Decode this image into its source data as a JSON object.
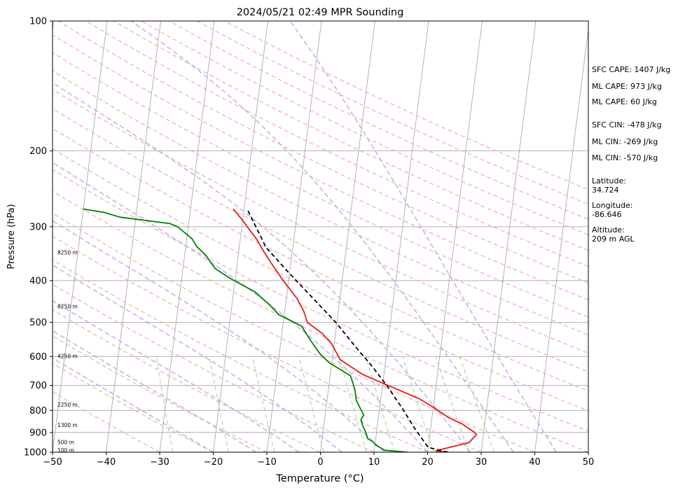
{
  "chart_data": {
    "type": "line",
    "title": "2024/05/21 02:49 MPR Sounding",
    "xlabel": "Temperature (°C)",
    "ylabel": "Pressure (hPa)",
    "xlim": [
      -50,
      50
    ],
    "ylim": [
      1000,
      100
    ],
    "y_scale": "log",
    "grid": true,
    "x_ticks": [
      "−50",
      "−40",
      "−30",
      "−20",
      "−10",
      "0",
      "10",
      "20",
      "30",
      "40",
      "50"
    ],
    "x_tick_values": [
      -50,
      -40,
      -30,
      -20,
      -10,
      0,
      10,
      20,
      30,
      40,
      50
    ],
    "y_ticks": [
      "100",
      "200",
      "300",
      "400",
      "500",
      "600",
      "700",
      "800",
      "900",
      "1000"
    ],
    "y_tick_values": [
      100,
      200,
      300,
      400,
      500,
      600,
      700,
      800,
      900,
      1000
    ],
    "height_labels": [
      {
        "text": "100 m",
        "p": 992
      },
      {
        "text": "500 m",
        "p": 950
      },
      {
        "text": "1300 m",
        "p": 868
      },
      {
        "text": "2250 m",
        "p": 778
      },
      {
        "text": "4250 m",
        "p": 600
      },
      {
        "text": "6250 m",
        "p": 460
      },
      {
        "text": "8250 m",
        "p": 345
      }
    ],
    "series": [
      {
        "color": "#e8191b",
        "points": [
          [
            23.8,
            1000
          ],
          [
            21.5,
            993
          ],
          [
            22.8,
            983
          ],
          [
            27.5,
            950
          ],
          [
            28.7,
            910
          ],
          [
            28.3,
            900
          ],
          [
            25.8,
            860
          ],
          [
            23,
            830
          ],
          [
            19.5,
            780
          ],
          [
            17,
            750
          ],
          [
            11,
            700
          ],
          [
            6,
            660
          ],
          [
            1.5,
            610
          ],
          [
            -0.5,
            560
          ],
          [
            -2.5,
            530
          ],
          [
            -5.5,
            500
          ],
          [
            -6.5,
            470
          ],
          [
            -8,
            440
          ],
          [
            -11,
            400
          ],
          [
            -14,
            360
          ],
          [
            -15.5,
            340
          ],
          [
            -17,
            320
          ],
          [
            -18.5,
            305
          ],
          [
            -20,
            290
          ],
          [
            -22,
            273
          ]
        ]
      },
      {
        "color": "#008000",
        "points": [
          [
            16.3,
            1000
          ],
          [
            12,
            990
          ],
          [
            10.3,
            965
          ],
          [
            9.5,
            945
          ],
          [
            8.5,
            930
          ],
          [
            8,
            900
          ],
          [
            7.3,
            870
          ],
          [
            6.8,
            840
          ],
          [
            7.2,
            820
          ],
          [
            5.5,
            760
          ],
          [
            5,
            720
          ],
          [
            4.5,
            695
          ],
          [
            3.8,
            665
          ],
          [
            -0.5,
            620
          ],
          [
            -2.5,
            590
          ],
          [
            -4.5,
            550
          ],
          [
            -6.5,
            510
          ],
          [
            -11,
            480
          ],
          [
            -13,
            455
          ],
          [
            -16,
            425
          ],
          [
            -21,
            395
          ],
          [
            -24,
            375
          ],
          [
            -26,
            350
          ],
          [
            -28,
            333
          ],
          [
            -29,
            320
          ],
          [
            -32,
            300
          ],
          [
            -33.5,
            295
          ],
          [
            -43,
            285
          ],
          [
            -46,
            278
          ],
          [
            -50,
            273
          ]
        ]
      },
      {
        "color": "#000000",
        "dashed": true,
        "points": [
          [
            23.8,
            1000
          ],
          [
            20,
            975
          ],
          [
            17,
            880
          ],
          [
            14.2,
            790
          ],
          [
            10.8,
            700
          ],
          [
            7.5,
            630
          ],
          [
            3.8,
            565
          ],
          [
            -0.2,
            500
          ],
          [
            -5,
            440
          ],
          [
            -10.5,
            380
          ],
          [
            -15,
            335
          ],
          [
            -19.5,
            272
          ]
        ]
      }
    ]
  },
  "stats": {
    "sfc_cape": "SFC CAPE: 1407 J/kg",
    "ml_cape": "ML CAPE: 973 J/kg",
    "ml_cape2": "ML CAPE: 60 J/kg",
    "sfc_cin": "SFC CIN: -478 J/kg",
    "ml_cin": "ML CIN: -269 J/kg",
    "ml_cin2": "ML CIN: -570 J/kg",
    "latitude_label": "Latitude:",
    "latitude_value": "34.724",
    "longitude_label": "Longitude:",
    "longitude_value": "-86.646",
    "altitude_label": "Altitude:",
    "altitude_value": "209 m AGL"
  }
}
